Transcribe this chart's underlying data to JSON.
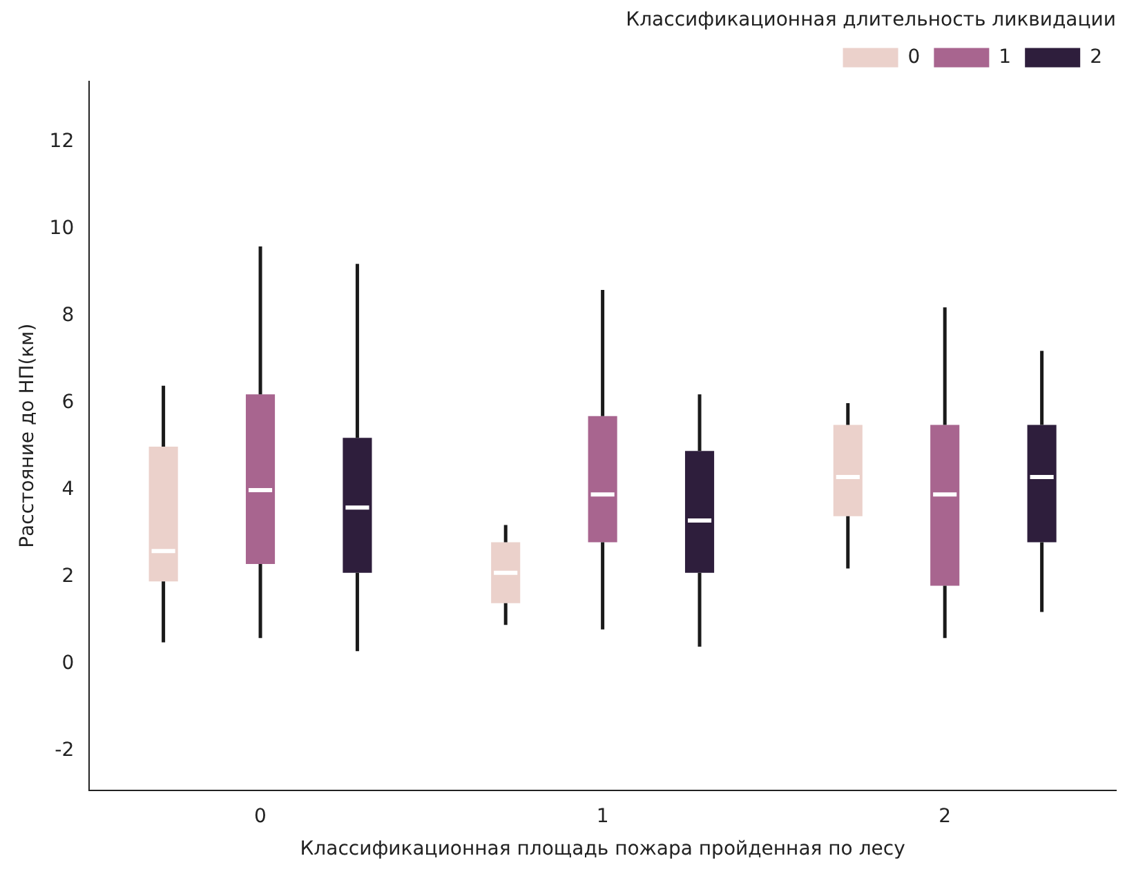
{
  "chart_data": {
    "type": "box",
    "xlabel": "Классификационная площадь пожара пройденная по лесу",
    "ylabel": "Расстояние до НП(км)",
    "legend_title": "Классификационная длительность ликвидации",
    "categories": [
      "0",
      "1",
      "2"
    ],
    "series": [
      {
        "name": "0",
        "color": "#ebd1cb",
        "boxes": [
          {
            "low": 0.5,
            "q1": 1.9,
            "median": 2.6,
            "q3": 5.0,
            "high": 6.4
          },
          {
            "low": 0.9,
            "q1": 1.4,
            "median": 2.1,
            "q3": 2.8,
            "high": 3.2
          },
          {
            "low": 2.2,
            "q1": 3.4,
            "median": 4.3,
            "q3": 5.5,
            "high": 6.0
          }
        ]
      },
      {
        "name": "1",
        "color": "#a8658f",
        "boxes": [
          {
            "low": 0.6,
            "q1": 2.3,
            "median": 4.0,
            "q3": 6.2,
            "high": 9.6
          },
          {
            "low": 0.8,
            "q1": 2.8,
            "median": 3.9,
            "q3": 5.7,
            "high": 8.6
          },
          {
            "low": 0.6,
            "q1": 1.8,
            "median": 3.9,
            "q3": 5.5,
            "high": 8.2
          }
        ]
      },
      {
        "name": "2",
        "color": "#2e1e3c",
        "boxes": [
          {
            "low": 0.3,
            "q1": 2.1,
            "median": 3.6,
            "q3": 5.2,
            "high": 9.2
          },
          {
            "low": 0.4,
            "q1": 2.1,
            "median": 3.3,
            "q3": 4.9,
            "high": 6.2
          },
          {
            "low": 1.2,
            "q1": 2.8,
            "median": 4.3,
            "q3": 5.5,
            "high": 7.2
          }
        ]
      }
    ],
    "ylim": [
      -2.9,
      13.4
    ],
    "yticks": [
      -2,
      0,
      2,
      4,
      6,
      8,
      10,
      12
    ],
    "legend": "top right"
  }
}
